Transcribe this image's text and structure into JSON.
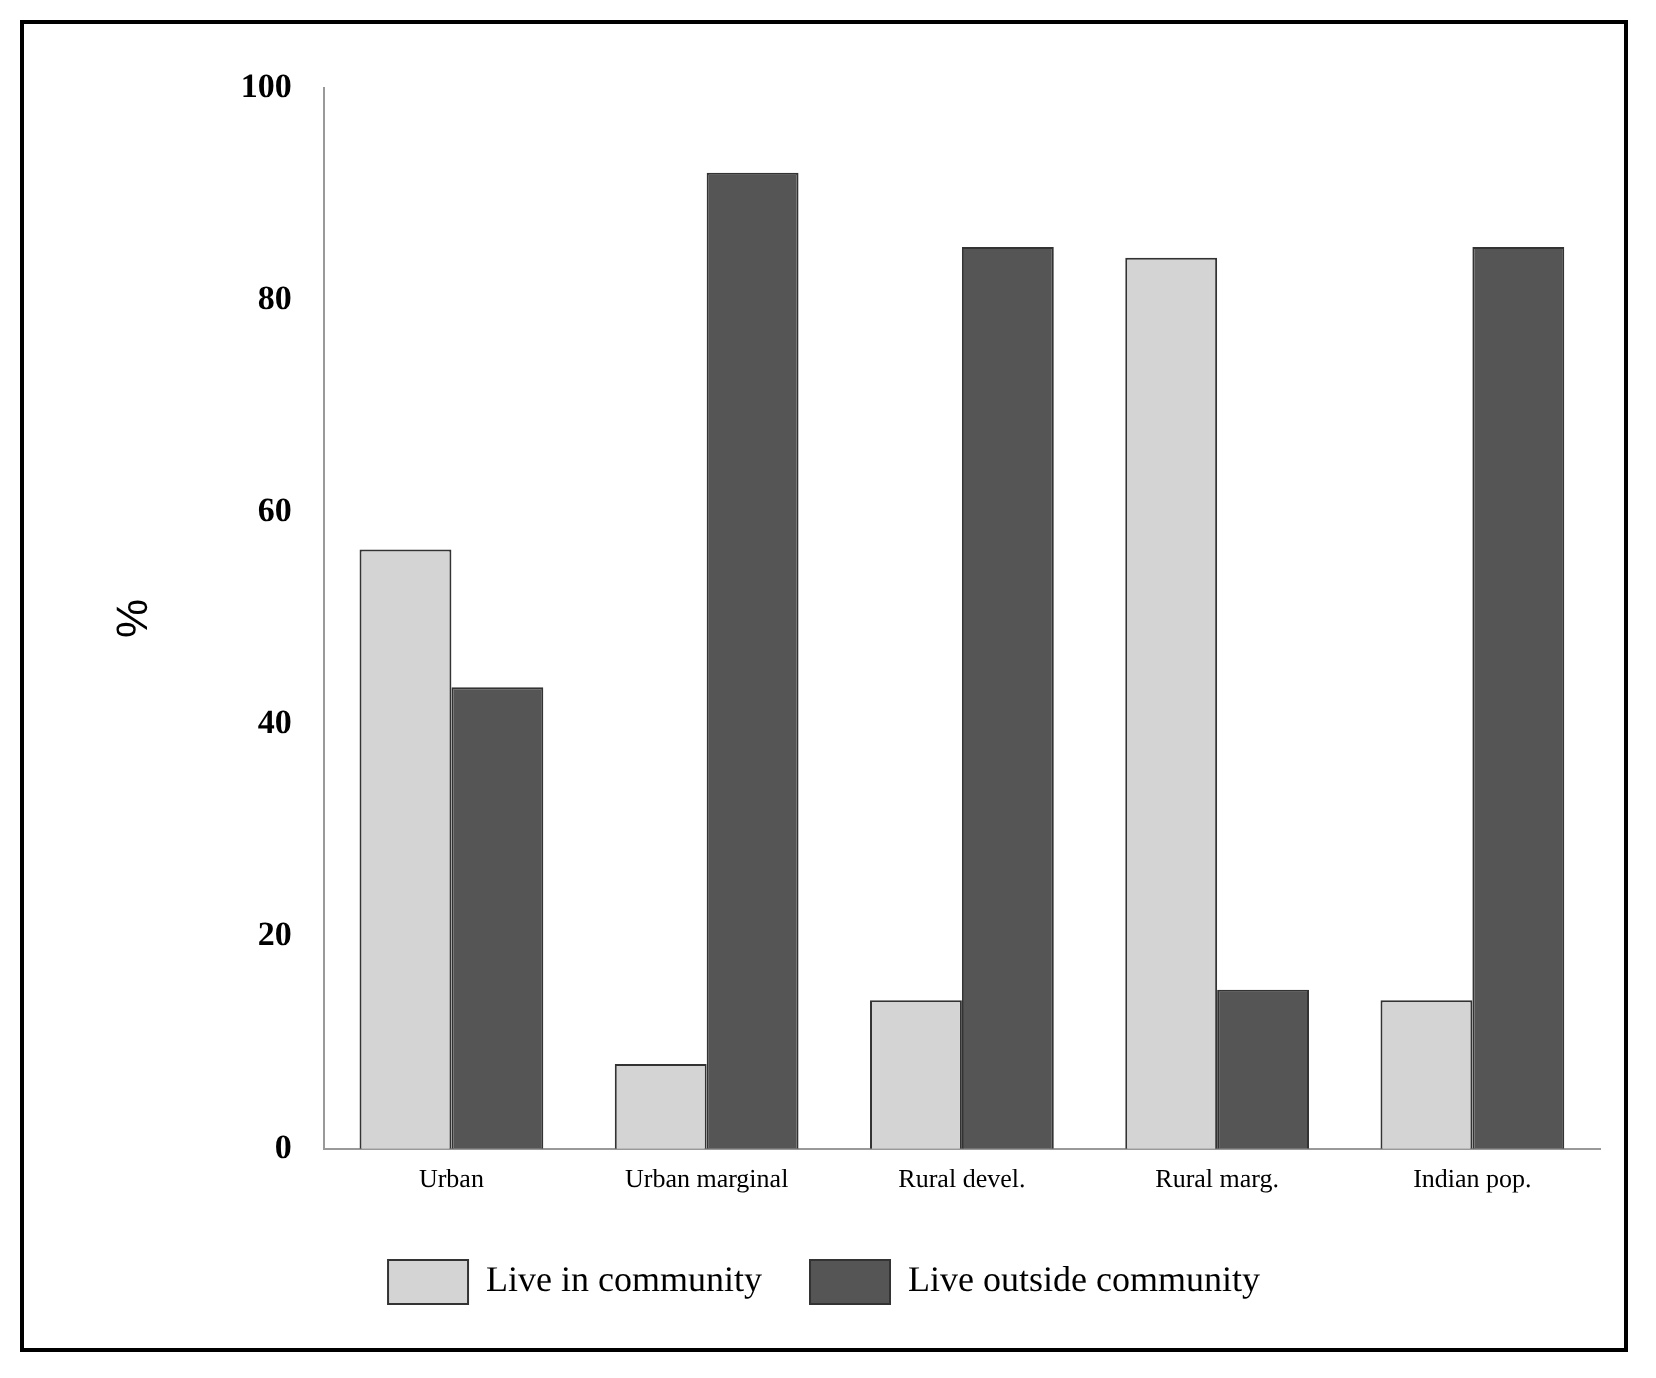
{
  "chart_data": {
    "type": "bar",
    "ylabel": "%",
    "categories": [
      "Urban",
      "Urban marginal",
      "Rural devel.",
      "Rural marg.",
      "Indian pop."
    ],
    "series": [
      {
        "name": "Live in community",
        "color": "#d4d4d4",
        "values": [
          56.5,
          8,
          14,
          84,
          14
        ]
      },
      {
        "name": "Live outside community",
        "color": "#555555",
        "values": [
          43.5,
          92,
          85,
          15,
          85
        ]
      }
    ],
    "ylim": [
      0,
      100
    ],
    "yticks": [
      0,
      20,
      40,
      60,
      80,
      100
    ],
    "grid": false,
    "legend": "bottom"
  }
}
